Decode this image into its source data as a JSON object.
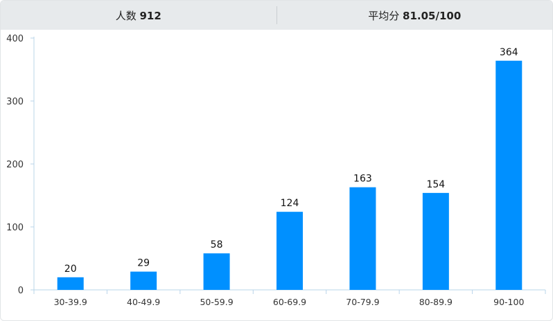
{
  "summary": {
    "count_label": "人数",
    "count_value": "912",
    "avg_label": "平均分",
    "avg_value": "81.05/100"
  },
  "colors": {
    "bar": "#0090ff",
    "axis": "#b9d4ea",
    "header_bg": "#e7eaec"
  },
  "chart_data": {
    "type": "bar",
    "categories": [
      "30-39.9",
      "40-49.9",
      "50-59.9",
      "60-69.9",
      "70-79.9",
      "80-89.9",
      "90-100"
    ],
    "values": [
      20,
      29,
      58,
      124,
      163,
      154,
      364
    ],
    "title": "",
    "xlabel": "",
    "ylabel": "",
    "ylim": [
      0,
      400
    ],
    "yticks": [
      0,
      100,
      200,
      300,
      400
    ],
    "grid": false,
    "data_labels": true
  }
}
